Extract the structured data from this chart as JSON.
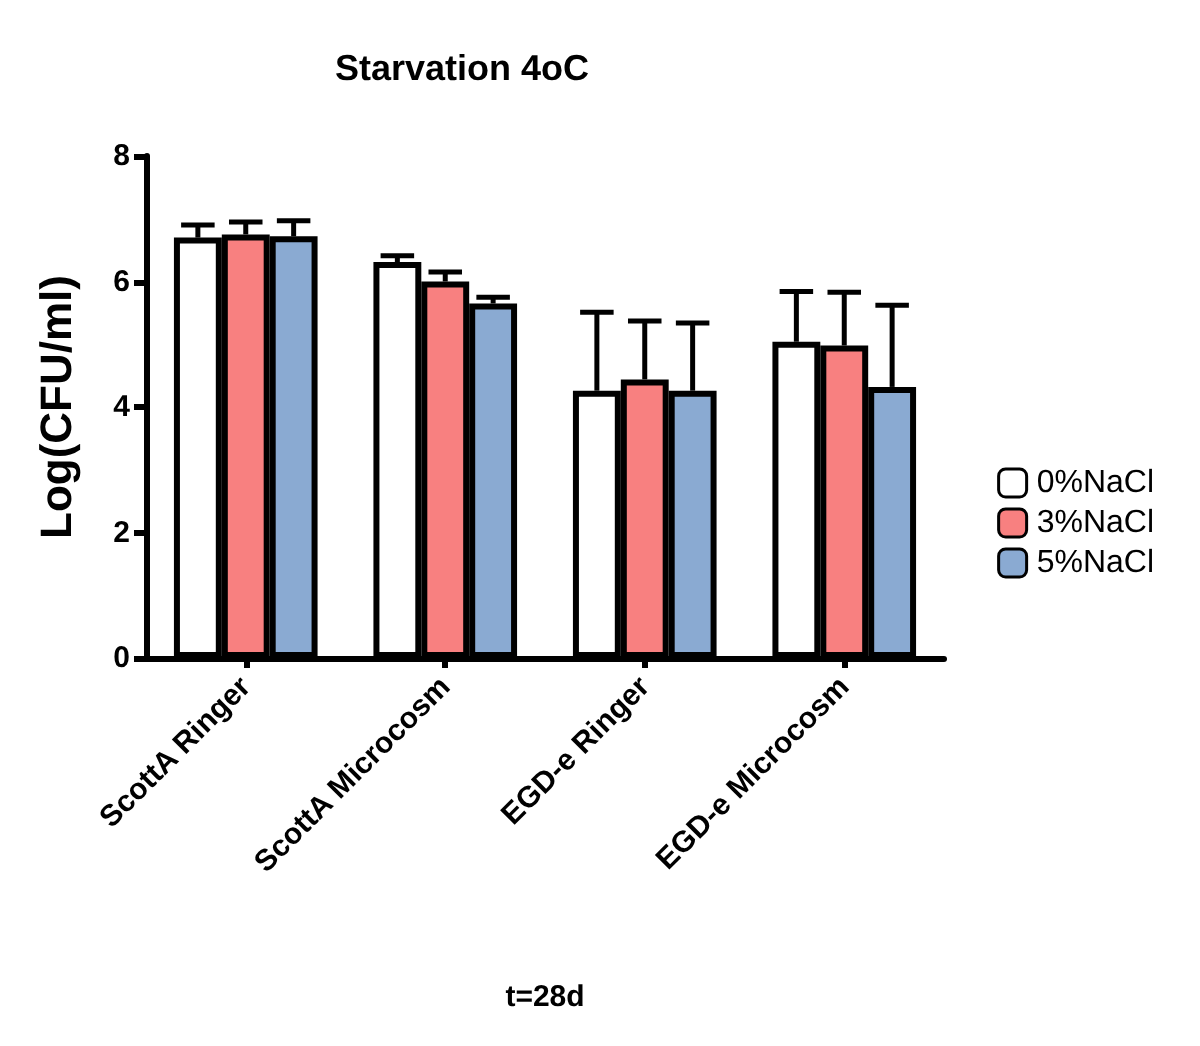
{
  "chart_data": {
    "type": "bar",
    "title": "Starvation 4oC",
    "xlabel": "t=28d",
    "ylabel": "Log(CFU/ml)",
    "categories": [
      "ScottA Ringer",
      "ScottA Microcosm",
      "EGD-e Ringer",
      "EGD-e Microcosm"
    ],
    "series": [
      {
        "name": "0%NaCl",
        "color": "#ffffff",
        "values": [
          6.7,
          6.31,
          4.26,
          5.04
        ],
        "errors": [
          [
            6.7,
            6.9
          ],
          [
            6.31,
            6.41
          ],
          [
            4.26,
            5.51
          ],
          [
            5.04,
            5.84
          ]
        ]
      },
      {
        "name": "3%NaCl",
        "color": "#f88080",
        "values": [
          6.75,
          6.0,
          4.44,
          4.98
        ],
        "errors": [
          [
            6.75,
            6.95
          ],
          [
            6.0,
            6.15
          ],
          [
            4.44,
            5.37
          ],
          [
            4.98,
            5.83
          ]
        ]
      },
      {
        "name": "5%NaCl",
        "color": "#8aaad2",
        "values": [
          6.72,
          5.65,
          4.26,
          4.32
        ],
        "errors": [
          [
            6.72,
            6.97
          ],
          [
            5.65,
            5.75
          ],
          [
            4.26,
            5.34
          ],
          [
            4.32,
            5.62
          ]
        ]
      }
    ],
    "ylim": [
      0,
      8
    ],
    "yticks": [
      0,
      2,
      4,
      6,
      8
    ],
    "grid": false,
    "legend": "right"
  }
}
